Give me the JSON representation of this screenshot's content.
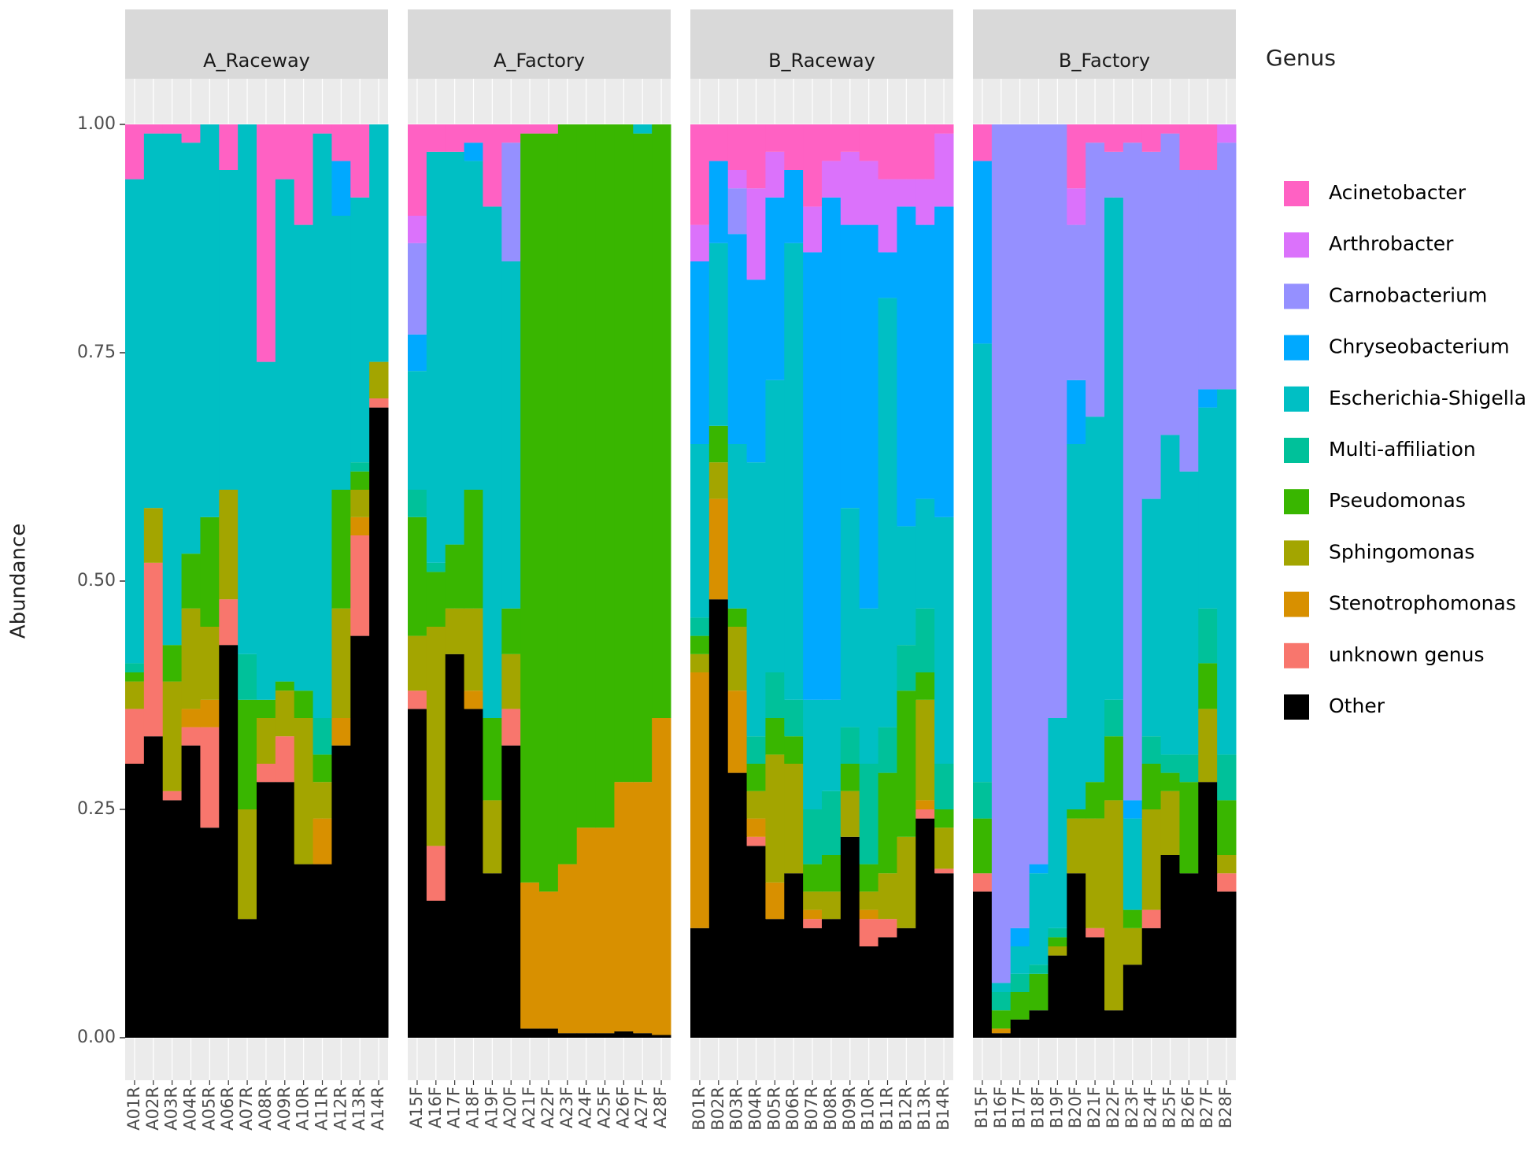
{
  "chart_data": {
    "type": "bar",
    "stacked": true,
    "ylabel": "Abundance",
    "legend_title": "Genus",
    "legend": "right",
    "grid": true,
    "ylim": [
      0,
      1
    ],
    "yticks": [
      {
        "value": 0,
        "label": "0.00"
      },
      {
        "value": 0.25,
        "label": "0.25"
      },
      {
        "value": 0.5,
        "label": "0.50"
      },
      {
        "value": 0.75,
        "label": "0.75"
      },
      {
        "value": 1,
        "label": "1.00"
      }
    ],
    "series": [
      {
        "name": "Acinetobacter",
        "color": "#FF61C3"
      },
      {
        "name": "Arthrobacter",
        "color": "#DB72FB"
      },
      {
        "name": "Carnobacterium",
        "color": "#9590FF"
      },
      {
        "name": "Chryseobacterium",
        "color": "#00A9FF"
      },
      {
        "name": "Escherichia-Shigella",
        "color": "#00BFC4"
      },
      {
        "name": "Multi-affiliation",
        "color": "#00C19A"
      },
      {
        "name": "Pseudomonas",
        "color": "#39B600"
      },
      {
        "name": "Sphingomonas",
        "color": "#A3A500"
      },
      {
        "name": "Stenotrophomonas",
        "color": "#D89000"
      },
      {
        "name": "unknown genus",
        "color": "#F8766D"
      },
      {
        "name": "Other",
        "color": "#000000"
      }
    ],
    "facets": [
      {
        "title": "A_Raceway",
        "categories": [
          "A01R",
          "A02R",
          "A03R",
          "A04R",
          "A05R",
          "A06R",
          "A07R",
          "A08R",
          "A09R",
          "A10R",
          "A11R",
          "A12R",
          "A13R",
          "A14R"
        ],
        "values": [
          [
            0.06,
            0,
            0,
            0,
            0.53,
            0.01,
            0.01,
            0.03,
            0,
            0.06,
            0.3
          ],
          [
            0.01,
            0,
            0,
            0,
            0.41,
            0,
            0,
            0.06,
            0,
            0.19,
            0.33
          ],
          [
            0.01,
            0,
            0,
            0,
            0.56,
            0,
            0.04,
            0.12,
            0,
            0.01,
            0.26
          ],
          [
            0.02,
            0,
            0,
            0,
            0.45,
            0,
            0.06,
            0.11,
            0.02,
            0.02,
            0.32
          ],
          [
            0,
            0,
            0,
            0,
            0.43,
            0,
            0.12,
            0.08,
            0.03,
            0.11,
            0.23
          ],
          [
            0.05,
            0,
            0,
            0,
            0.35,
            0,
            0,
            0.12,
            0,
            0.05,
            0.43
          ],
          [
            0,
            0,
            0,
            0,
            0.58,
            0.05,
            0.12,
            0.12,
            0,
            0,
            0.13
          ],
          [
            0.26,
            0,
            0,
            0,
            0.37,
            0,
            0.02,
            0.05,
            0,
            0.02,
            0.28
          ],
          [
            0.06,
            0,
            0,
            0,
            0.55,
            0,
            0.01,
            0.05,
            0,
            0.05,
            0.28
          ],
          [
            0.11,
            0,
            0,
            0,
            0.51,
            0,
            0.03,
            0.16,
            0,
            0,
            0.19
          ],
          [
            0.01,
            0,
            0,
            0,
            0.64,
            0.04,
            0.03,
            0.04,
            0.05,
            0,
            0.19
          ],
          [
            0.04,
            0,
            0,
            0.06,
            0.3,
            0,
            0.13,
            0.12,
            0.03,
            0,
            0.32
          ],
          [
            0.08,
            0,
            0,
            0,
            0.29,
            0.01,
            0.02,
            0.03,
            0.02,
            0.11,
            0.44
          ],
          [
            0,
            0,
            0,
            0,
            0.26,
            0,
            0,
            0.04,
            0,
            0.01,
            0.69
          ]
        ]
      },
      {
        "title": "A_Factory",
        "categories": [
          "A15F",
          "A16F",
          "A17F",
          "A18F",
          "A19F",
          "A20F",
          "A21F",
          "A22F",
          "A23F",
          "A24F",
          "A25F",
          "A26F",
          "A27F",
          "A28F"
        ],
        "values": [
          [
            0.1,
            0.03,
            0.1,
            0.04,
            0.13,
            0.03,
            0.13,
            0.06,
            0,
            0.02,
            0.36
          ],
          [
            0.03,
            0,
            0,
            0,
            0.45,
            0.01,
            0.06,
            0.24,
            0,
            0.06,
            0.15
          ],
          [
            0.03,
            0,
            0,
            0,
            0.43,
            0,
            0.07,
            0.05,
            0,
            0,
            0.42
          ],
          [
            0.02,
            0,
            0,
            0.02,
            0.36,
            0,
            0.13,
            0.09,
            0.02,
            0,
            0.36
          ],
          [
            0.09,
            0,
            0,
            0,
            0.56,
            0,
            0.09,
            0.08,
            0,
            0,
            0.18
          ],
          [
            0.02,
            0,
            0.13,
            0,
            0.38,
            0,
            0.05,
            0.06,
            0,
            0.04,
            0.32
          ],
          [
            0.01,
            0,
            0,
            0,
            0,
            0,
            0.82,
            0,
            0.16,
            0,
            0.01
          ],
          [
            0.01,
            0,
            0,
            0,
            0,
            0,
            0.83,
            0,
            0.15,
            0,
            0.01
          ],
          [
            0,
            0,
            0,
            0,
            0,
            0,
            0.81,
            0,
            0.185,
            0,
            0.005
          ],
          [
            0,
            0,
            0,
            0,
            0,
            0,
            0.77,
            0,
            0.225,
            0,
            0.005
          ],
          [
            0,
            0,
            0,
            0,
            0,
            0,
            0.77,
            0,
            0.225,
            0,
            0.005
          ],
          [
            0,
            0,
            0,
            0,
            0,
            0,
            0.72,
            0,
            0.273,
            0,
            0.007
          ],
          [
            0,
            0,
            0,
            0,
            0.01,
            0,
            0.71,
            0,
            0.275,
            0,
            0.005
          ],
          [
            0,
            0,
            0,
            0,
            0,
            0,
            0.65,
            0,
            0.347,
            0,
            0.003
          ]
        ]
      },
      {
        "title": "B_Raceway",
        "categories": [
          "B01R",
          "B02R",
          "B03R",
          "B04R",
          "B05R",
          "B06R",
          "B07R",
          "B08R",
          "B09R",
          "B10R",
          "B11R",
          "B12R",
          "B13R",
          "B14R"
        ],
        "values": [
          [
            0.11,
            0.04,
            0,
            0.2,
            0.19,
            0.02,
            0.02,
            0.02,
            0.28,
            0,
            0.12
          ],
          [
            0.04,
            0,
            0,
            0.09,
            0.2,
            0,
            0.04,
            0.04,
            0.11,
            0,
            0.48
          ],
          [
            0.05,
            0.02,
            0.05,
            0.23,
            0.18,
            0,
            0.02,
            0.07,
            0.09,
            0,
            0.29
          ],
          [
            0.07,
            0.1,
            0,
            0.2,
            0.3,
            0.03,
            0.03,
            0.03,
            0.02,
            0.01,
            0.21
          ],
          [
            0.03,
            0.05,
            0,
            0.2,
            0.32,
            0.05,
            0.04,
            0.14,
            0.04,
            0,
            0.13
          ],
          [
            0.05,
            0,
            0,
            0.08,
            0.5,
            0.04,
            0.03,
            0.12,
            0,
            0,
            0.18
          ],
          [
            0.09,
            0.05,
            0,
            0.49,
            0.12,
            0.06,
            0.03,
            0.02,
            0.01,
            0.01,
            0.12
          ],
          [
            0.04,
            0.04,
            0,
            0.55,
            0.1,
            0.07,
            0.04,
            0.03,
            0,
            0,
            0.13
          ],
          [
            0.03,
            0.08,
            0,
            0.31,
            0.24,
            0.04,
            0.03,
            0.05,
            0,
            0,
            0.22
          ],
          [
            0.04,
            0.07,
            0,
            0.42,
            0.17,
            0.11,
            0.03,
            0.02,
            0.01,
            0.03,
            0.1
          ],
          [
            0.06,
            0.08,
            0,
            0.05,
            0.47,
            0.05,
            0.11,
            0.05,
            0,
            0.02,
            0.11
          ],
          [
            0.06,
            0.03,
            0,
            0.35,
            0.13,
            0.05,
            0.16,
            0.1,
            0,
            0,
            0.12
          ],
          [
            0.06,
            0.05,
            0,
            0.3,
            0.12,
            0.07,
            0.03,
            0.11,
            0.01,
            0.01,
            0.24
          ],
          [
            0.01,
            0.08,
            0,
            0.34,
            0.27,
            0.05,
            0.02,
            0.045,
            0,
            0.005,
            0.18
          ]
        ]
      },
      {
        "title": "B_Factory",
        "categories": [
          "B15F",
          "B16F",
          "B17F",
          "B18F",
          "B19F",
          "B20F",
          "B21F",
          "B22F",
          "B23F",
          "B24F",
          "B25F",
          "B26F",
          "B27F",
          "B28F"
        ],
        "values": [
          [
            0.04,
            0,
            0,
            0.2,
            0.48,
            0.04,
            0.06,
            0,
            0,
            0.02,
            0.16
          ],
          [
            0,
            0,
            0.94,
            0,
            0.01,
            0.02,
            0.02,
            0,
            0.005,
            0,
            0.005
          ],
          [
            0,
            0,
            0.88,
            0.02,
            0.03,
            0.02,
            0.03,
            0,
            0,
            0,
            0.02
          ],
          [
            0,
            0,
            0.81,
            0.01,
            0.1,
            0.01,
            0.04,
            0,
            0,
            0,
            0.03
          ],
          [
            0,
            0,
            0.65,
            0,
            0.23,
            0.01,
            0.01,
            0.01,
            0,
            0,
            0.09
          ],
          [
            0.07,
            0.04,
            0.17,
            0.07,
            0.4,
            0,
            0.01,
            0.06,
            0,
            0,
            0.18
          ],
          [
            0.02,
            0,
            0.3,
            0,
            0.4,
            0,
            0.04,
            0.12,
            0,
            0.01,
            0.11
          ],
          [
            0.03,
            0,
            0.05,
            0,
            0.55,
            0.04,
            0.07,
            0.23,
            0,
            0,
            0.03
          ],
          [
            0.02,
            0,
            0.72,
            0.02,
            0.1,
            0,
            0.02,
            0.04,
            0,
            0,
            0.08
          ],
          [
            0.03,
            0,
            0.38,
            0,
            0.26,
            0.03,
            0.05,
            0.11,
            0,
            0.02,
            0.12
          ],
          [
            0.01,
            0,
            0.33,
            0,
            0.35,
            0.02,
            0.02,
            0.07,
            0,
            0,
            0.2
          ],
          [
            0.05,
            0,
            0.33,
            0,
            0.31,
            0.03,
            0.1,
            0,
            0,
            0,
            0.18
          ],
          [
            0.05,
            0,
            0.24,
            0.02,
            0.22,
            0.06,
            0.05,
            0.08,
            0,
            0,
            0.28
          ],
          [
            0,
            0.02,
            0.27,
            0,
            0.4,
            0.05,
            0.06,
            0.02,
            0,
            0.02,
            0.16
          ]
        ]
      }
    ]
  }
}
